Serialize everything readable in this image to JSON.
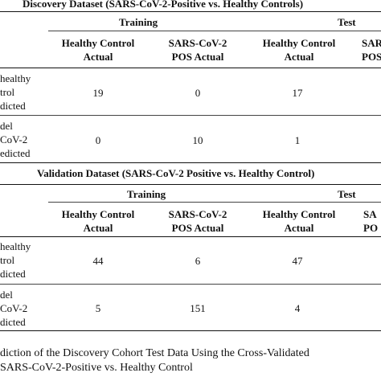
{
  "discovery": {
    "title": "Discovery Dataset (SARS-CoV-2-Positive vs. Healthy Controls)",
    "group_training": "Training",
    "group_test": "Test",
    "col1": [
      "Healthy Control",
      "Actual"
    ],
    "col2": [
      "SARS-CoV-2",
      "POS Actual"
    ],
    "col3": [
      "Healthy Control",
      "Actual"
    ],
    "col4": [
      "SARS",
      "POS"
    ],
    "row1_label": [
      "healthy",
      "trol",
      "dicted"
    ],
    "row2_label": [
      "del",
      "CoV-2",
      "edicted"
    ],
    "row1": [
      "19",
      "0",
      "17"
    ],
    "row2": [
      "0",
      "10",
      "1"
    ]
  },
  "validation": {
    "title": "Validation Dataset (SARS-CoV-2 Positive vs. Healthy Control)",
    "group_training": "Training",
    "group_test": "Test",
    "col1": [
      "Healthy Control",
      "Actual"
    ],
    "col2": [
      "SARS-CoV-2",
      "POS Actual"
    ],
    "col3": [
      "Healthy Control",
      "Actual"
    ],
    "col4": [
      "SA",
      "PO"
    ],
    "row1_label": [
      "healthy",
      "trol",
      "dicted"
    ],
    "row2_label": [
      "del",
      "CoV-2",
      "dicted"
    ],
    "row1": [
      "44",
      "6",
      "47"
    ],
    "row2": [
      "5",
      "151",
      "4"
    ]
  },
  "caption": [
    "diction of the Discovery Cohort Test Data Using the Cross-Validated",
    "SARS-CoV-2-Positive vs. Healthy Control"
  ]
}
